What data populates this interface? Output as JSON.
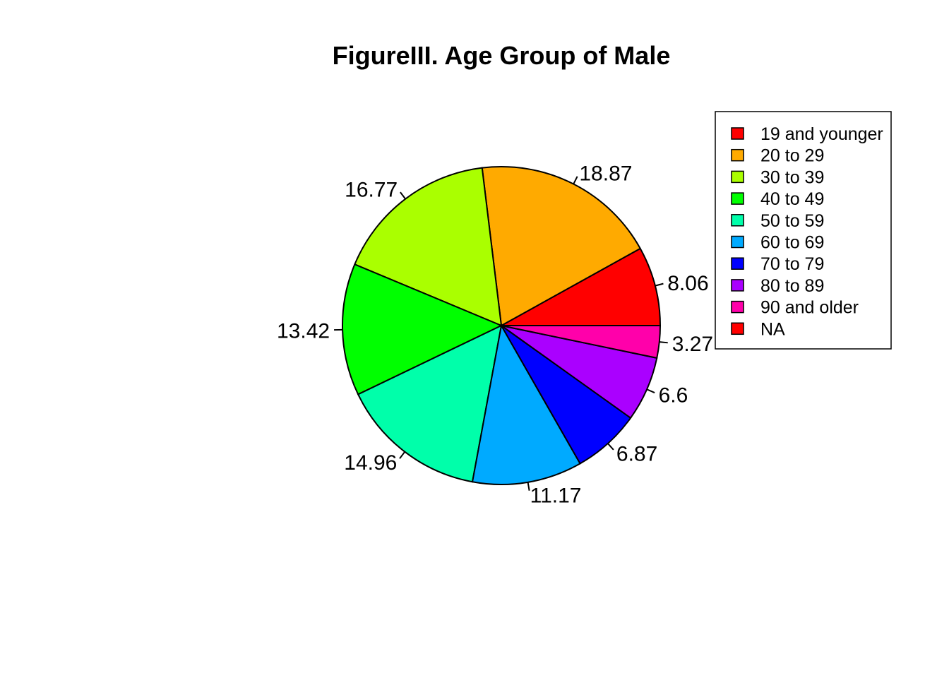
{
  "chart_data": {
    "type": "pie",
    "title": "FigureIII. Age Group of Male",
    "direction": "counterclockwise",
    "start_angle_deg": 0,
    "slices": [
      {
        "label": "19 and younger",
        "value": 8.06,
        "display": "8.06",
        "color": "#FF0000"
      },
      {
        "label": "20 to 29",
        "value": 18.87,
        "display": "18.87",
        "color": "#FFAA00"
      },
      {
        "label": "30 to 39",
        "value": 16.77,
        "display": "16.77",
        "color": "#AAFF00"
      },
      {
        "label": "40 to 49",
        "value": 13.42,
        "display": "13.42",
        "color": "#00FF00"
      },
      {
        "label": "50 to 59",
        "value": 14.96,
        "display": "14.96",
        "color": "#00FFAA"
      },
      {
        "label": "60 to 69",
        "value": 11.17,
        "display": "11.17",
        "color": "#00AAFF"
      },
      {
        "label": "70 to 79",
        "value": 6.87,
        "display": "6.87",
        "color": "#0000FF"
      },
      {
        "label": "80 to 89",
        "value": 6.6,
        "display": "6.6",
        "color": "#AA00FF"
      },
      {
        "label": "90 and older",
        "value": 3.27,
        "display": "3.27",
        "color": "#FF00AA"
      }
    ],
    "legend": {
      "placement": "right",
      "entries": [
        {
          "label": "19 and younger",
          "color": "#FF0000"
        },
        {
          "label": "20 to 29",
          "color": "#FFAA00"
        },
        {
          "label": "30 to 39",
          "color": "#AAFF00"
        },
        {
          "label": "40 to 49",
          "color": "#00FF00"
        },
        {
          "label": "50 to 59",
          "color": "#00FFAA"
        },
        {
          "label": "60 to 69",
          "color": "#00AAFF"
        },
        {
          "label": "70 to 79",
          "color": "#0000FF"
        },
        {
          "label": "80 to 89",
          "color": "#AA00FF"
        },
        {
          "label": "90 and older",
          "color": "#FF00AA"
        },
        {
          "label": "NA",
          "color": "#FF0000"
        }
      ]
    }
  }
}
